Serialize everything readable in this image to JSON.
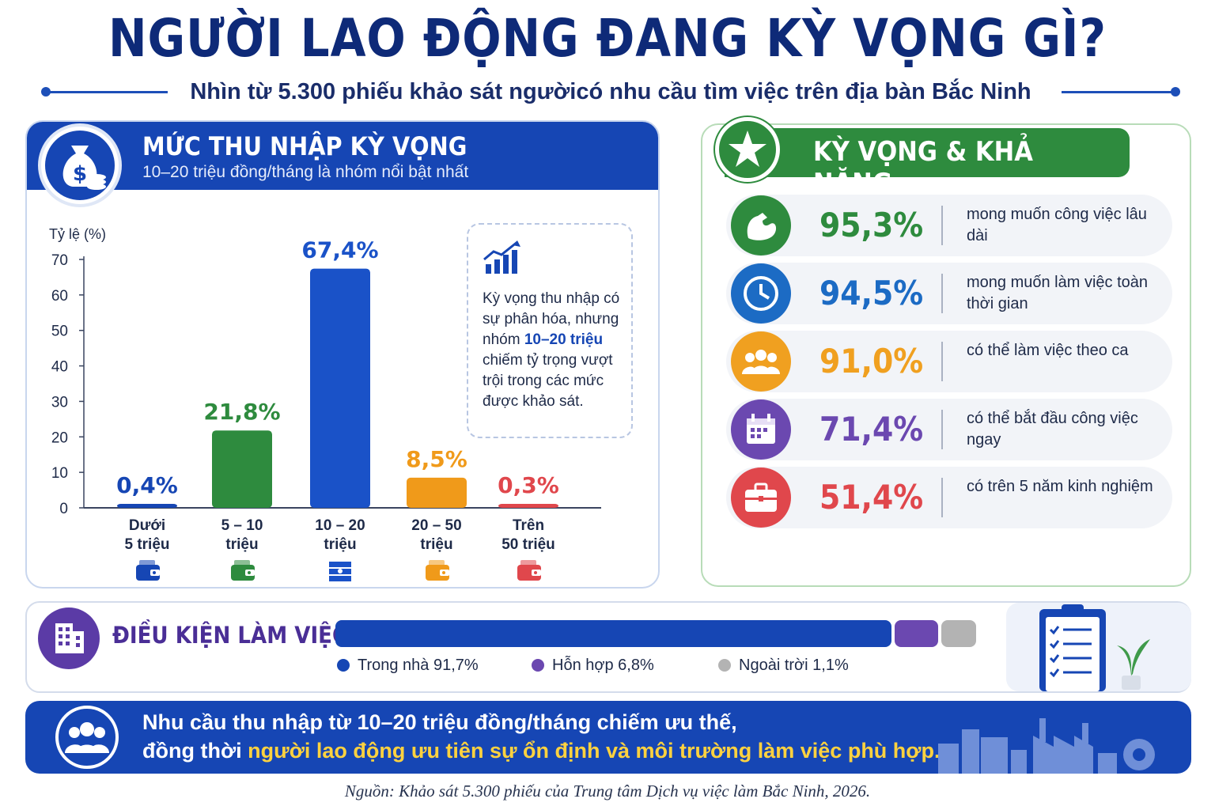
{
  "header": {
    "title": "NGƯỜI LAO ĐỘNG ĐANG KỲ VỌNG GÌ?",
    "subtitle": "Nhìn từ 5.300 phiếu khảo sát ngườicó nhu cầu tìm việc trên địa bàn Bắc Ninh"
  },
  "income": {
    "title": "MỨC THU NHẬP KỲ VỌNG",
    "subtitle": "10–20 triệu đồng/tháng là nhóm nổi bật nhất",
    "icon": "money-bag-icon",
    "insight": {
      "icon": "trend-up-chart-icon",
      "text_before": "Kỳ vọng thu nhập có sự phân hóa, nhưng nhóm",
      "highlight": "10–20 triệu",
      "text_after": "chiếm tỷ trọng vượt trội trong các mức được khảo sát."
    }
  },
  "chart_data": {
    "type": "bar",
    "ylabel": "Tỷ lệ (%)",
    "ylim": [
      0,
      70
    ],
    "yticks": [
      "0",
      "10",
      "20",
      "30",
      "40",
      "50",
      "60",
      "70"
    ],
    "categories": [
      [
        "Dưới",
        "5 triệu"
      ],
      [
        "5 – 10",
        "triệu"
      ],
      [
        "10 – 20",
        "triệu"
      ],
      [
        "20 – 50",
        "triệu"
      ],
      [
        "Trên",
        "50 triệu"
      ]
    ],
    "values": [
      0.4,
      21.8,
      67.4,
      8.5,
      0.3
    ],
    "value_labels": [
      "0,4%",
      "21,8%",
      "67,4%",
      "8,5%",
      "0,3%"
    ],
    "colors": [
      "#1646b4",
      "#2e8b3e",
      "#1a52c8",
      "#f09a1a",
      "#e0474c"
    ],
    "category_icons": [
      "wallet-icon",
      "wallet-icon",
      "cash-stack-icon",
      "wallet-icon",
      "wallet-icon"
    ]
  },
  "expectations": {
    "title": "KỲ VỌNG & KHẢ NĂNG",
    "icon": "star-icon",
    "items": [
      {
        "value": "95,3%",
        "label": "mong muốn công việc lâu dài",
        "color": "#2e8b3e",
        "icon": "flexed-arm-icon"
      },
      {
        "value": "94,5%",
        "label": "mong muốn làm việc toàn thời gian",
        "color": "#1c6bc4",
        "icon": "clock-icon"
      },
      {
        "value": "91,0%",
        "label": "có thể làm việc theo ca",
        "color": "#f0a020",
        "icon": "group-icon"
      },
      {
        "value": "71,4%",
        "label": "có thể bắt đầu công việc ngay",
        "color": "#6b48b0",
        "icon": "calendar-icon"
      },
      {
        "value": "51,4%",
        "label": "có trên 5 năm kinh nghiệm",
        "color": "#e0474c",
        "icon": "briefcase-icon"
      }
    ]
  },
  "conditions": {
    "title": "ĐIỀU KIỆN LÀM VIỆC",
    "icon": "building-icon",
    "segments": [
      {
        "name": "Trong nhà",
        "value": 91.7,
        "label": "Trong nhà 91,7%",
        "color": "#1646b4"
      },
      {
        "name": "Hỗn hợp",
        "value": 6.8,
        "label": "Hỗn hợp 6,8%",
        "color": "#6b48b0"
      },
      {
        "name": "Ngoài trời",
        "value": 1.1,
        "label": "Ngoài trời 1,1%",
        "color": "#b3b3b3"
      }
    ],
    "illustration": "clipboard-checklist-icon"
  },
  "conclusion": {
    "icon": "people-icon",
    "line1": "Nhu cầu thu nhập từ 10–20 triệu đồng/tháng chiếm ưu thế,",
    "line2_prefix": "đồng thời",
    "line2_highlight": "người lao động ưu tiên sự ổn định và môi trường làm việc phù hợp."
  },
  "source": "Nguồn: Khảo sát 5.300 phiếu của Trung tâm Dịch vụ việc làm Bắc Ninh, 2026."
}
